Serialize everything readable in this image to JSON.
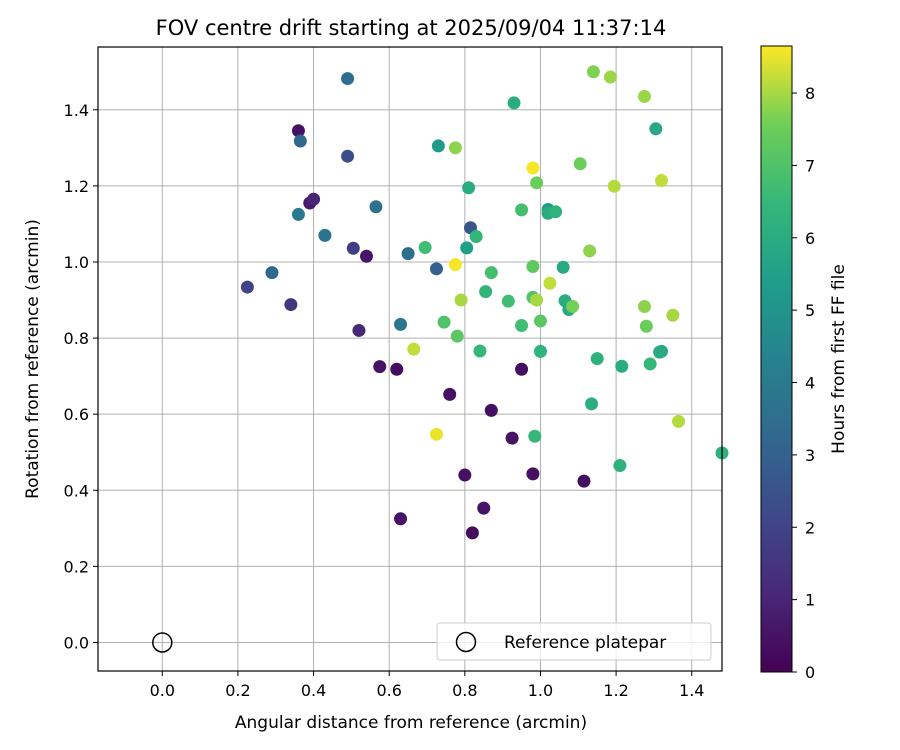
{
  "chart_data": {
    "type": "scatter",
    "title": "FOV centre drift starting at 2025/09/04 11:37:14",
    "xlabel": "Angular distance from reference (arcmin)",
    "ylabel": "Rotation from reference (arcmin)",
    "xlim": [
      -0.17,
      1.48
    ],
    "ylim": [
      -0.075,
      1.565
    ],
    "xticks": [
      "0.0",
      "0.2",
      "0.4",
      "0.6",
      "0.8",
      "1.0",
      "1.2",
      "1.4"
    ],
    "yticks": [
      "0.0",
      "0.2",
      "0.4",
      "0.6",
      "0.8",
      "1.0",
      "1.2",
      "1.4"
    ],
    "grid": true,
    "legend": {
      "label": "Reference platepar",
      "placement": "lower-right"
    },
    "reference_point": {
      "x": 0.0,
      "y": 0.0
    },
    "colorbar": {
      "label": "Hours from first FF file",
      "range": [
        0,
        8.65
      ],
      "ticks": [
        "0",
        "1",
        "2",
        "3",
        "4",
        "5",
        "6",
        "7",
        "8"
      ],
      "colormap": "viridis"
    },
    "series": [
      {
        "points": [
          {
            "x": 0.36,
            "y": 1.345,
            "h": 0.45
          },
          {
            "x": 0.39,
            "y": 1.155,
            "h": 0.7
          },
          {
            "x": 0.4,
            "y": 1.165,
            "h": 1.0
          },
          {
            "x": 0.54,
            "y": 1.015,
            "h": 0.6
          },
          {
            "x": 0.52,
            "y": 0.82,
            "h": 1.1
          },
          {
            "x": 0.575,
            "y": 0.725,
            "h": 0.5
          },
          {
            "x": 0.62,
            "y": 0.718,
            "h": 0.4
          },
          {
            "x": 0.76,
            "y": 0.652,
            "h": 0.45
          },
          {
            "x": 0.63,
            "y": 0.325,
            "h": 0.5
          },
          {
            "x": 0.8,
            "y": 0.44,
            "h": 0.45
          },
          {
            "x": 0.82,
            "y": 0.288,
            "h": 0.3
          },
          {
            "x": 0.85,
            "y": 0.353,
            "h": 0.5
          },
          {
            "x": 0.87,
            "y": 0.61,
            "h": 0.4
          },
          {
            "x": 0.95,
            "y": 0.718,
            "h": 0.35
          },
          {
            "x": 0.925,
            "y": 0.537,
            "h": 0.5
          },
          {
            "x": 0.98,
            "y": 0.443,
            "h": 0.45
          },
          {
            "x": 1.115,
            "y": 0.424,
            "h": 0.4
          },
          {
            "x": 0.34,
            "y": 0.888,
            "h": 1.5
          },
          {
            "x": 0.225,
            "y": 0.934,
            "h": 2.0
          },
          {
            "x": 0.29,
            "y": 0.972,
            "h": 3.3
          },
          {
            "x": 0.365,
            "y": 1.318,
            "h": 3.2
          },
          {
            "x": 0.49,
            "y": 1.482,
            "h": 3.4
          },
          {
            "x": 0.49,
            "y": 1.278,
            "h": 2.3
          },
          {
            "x": 0.505,
            "y": 1.036,
            "h": 1.8
          },
          {
            "x": 0.43,
            "y": 1.07,
            "h": 3.7
          },
          {
            "x": 0.36,
            "y": 1.125,
            "h": 4.0
          },
          {
            "x": 0.565,
            "y": 1.145,
            "h": 3.6
          },
          {
            "x": 0.63,
            "y": 0.836,
            "h": 3.8
          },
          {
            "x": 0.65,
            "y": 1.022,
            "h": 3.5
          },
          {
            "x": 0.725,
            "y": 0.982,
            "h": 3.0
          },
          {
            "x": 0.815,
            "y": 1.09,
            "h": 2.6
          },
          {
            "x": 0.73,
            "y": 1.305,
            "h": 5.3
          },
          {
            "x": 0.695,
            "y": 1.038,
            "h": 6.7
          },
          {
            "x": 0.805,
            "y": 1.037,
            "h": 5.5
          },
          {
            "x": 0.81,
            "y": 1.195,
            "h": 6.0
          },
          {
            "x": 0.83,
            "y": 1.067,
            "h": 6.4
          },
          {
            "x": 0.93,
            "y": 1.418,
            "h": 6.0
          },
          {
            "x": 0.95,
            "y": 1.137,
            "h": 6.8
          },
          {
            "x": 1.02,
            "y": 1.138,
            "h": 5.3
          },
          {
            "x": 1.02,
            "y": 1.128,
            "h": 6.0
          },
          {
            "x": 1.04,
            "y": 1.132,
            "h": 6.3
          },
          {
            "x": 1.06,
            "y": 0.986,
            "h": 5.9
          },
          {
            "x": 1.065,
            "y": 0.898,
            "h": 6.0
          },
          {
            "x": 1.075,
            "y": 0.875,
            "h": 5.8
          },
          {
            "x": 0.855,
            "y": 0.922,
            "h": 6.4
          },
          {
            "x": 0.87,
            "y": 0.972,
            "h": 6.8
          },
          {
            "x": 0.915,
            "y": 0.897,
            "h": 6.7
          },
          {
            "x": 0.95,
            "y": 0.833,
            "h": 6.7
          },
          {
            "x": 0.98,
            "y": 0.907,
            "h": 7.0
          },
          {
            "x": 0.84,
            "y": 0.766,
            "h": 6.5
          },
          {
            "x": 1.0,
            "y": 0.765,
            "h": 6.3
          },
          {
            "x": 1.15,
            "y": 0.746,
            "h": 6.2
          },
          {
            "x": 1.215,
            "y": 0.726,
            "h": 6.0
          },
          {
            "x": 1.135,
            "y": 0.627,
            "h": 6.1
          },
          {
            "x": 0.985,
            "y": 0.542,
            "h": 6.5
          },
          {
            "x": 1.21,
            "y": 0.465,
            "h": 6.2
          },
          {
            "x": 1.48,
            "y": 0.498,
            "h": 6.2
          },
          {
            "x": 1.315,
            "y": 0.763,
            "h": 6.0
          },
          {
            "x": 1.32,
            "y": 0.765,
            "h": 5.9
          },
          {
            "x": 1.29,
            "y": 0.732,
            "h": 6.5
          },
          {
            "x": 1.305,
            "y": 1.35,
            "h": 5.8
          },
          {
            "x": 0.745,
            "y": 0.842,
            "h": 7.0
          },
          {
            "x": 0.78,
            "y": 0.805,
            "h": 7.2
          },
          {
            "x": 0.79,
            "y": 0.9,
            "h": 8.0
          },
          {
            "x": 0.775,
            "y": 1.3,
            "h": 7.8
          },
          {
            "x": 0.665,
            "y": 0.771,
            "h": 8.2
          },
          {
            "x": 0.725,
            "y": 0.547,
            "h": 8.5
          },
          {
            "x": 0.775,
            "y": 0.993,
            "h": 8.6
          },
          {
            "x": 0.98,
            "y": 0.988,
            "h": 7.3
          },
          {
            "x": 0.99,
            "y": 1.208,
            "h": 7.5
          },
          {
            "x": 0.98,
            "y": 1.247,
            "h": 8.6
          },
          {
            "x": 1.025,
            "y": 0.944,
            "h": 8.2
          },
          {
            "x": 0.99,
            "y": 0.9,
            "h": 8.0
          },
          {
            "x": 1.0,
            "y": 0.845,
            "h": 7.2
          },
          {
            "x": 1.085,
            "y": 0.883,
            "h": 7.6
          },
          {
            "x": 1.105,
            "y": 1.258,
            "h": 7.5
          },
          {
            "x": 1.13,
            "y": 1.029,
            "h": 7.8
          },
          {
            "x": 1.14,
            "y": 1.5,
            "h": 7.7
          },
          {
            "x": 1.185,
            "y": 1.486,
            "h": 7.9
          },
          {
            "x": 1.195,
            "y": 1.199,
            "h": 8.1
          },
          {
            "x": 1.275,
            "y": 1.435,
            "h": 7.9
          },
          {
            "x": 1.275,
            "y": 0.883,
            "h": 7.8
          },
          {
            "x": 1.28,
            "y": 0.831,
            "h": 7.5
          },
          {
            "x": 1.32,
            "y": 1.214,
            "h": 8.2
          },
          {
            "x": 1.35,
            "y": 0.86,
            "h": 8.0
          },
          {
            "x": 1.365,
            "y": 0.581,
            "h": 8.1
          }
        ]
      }
    ]
  }
}
